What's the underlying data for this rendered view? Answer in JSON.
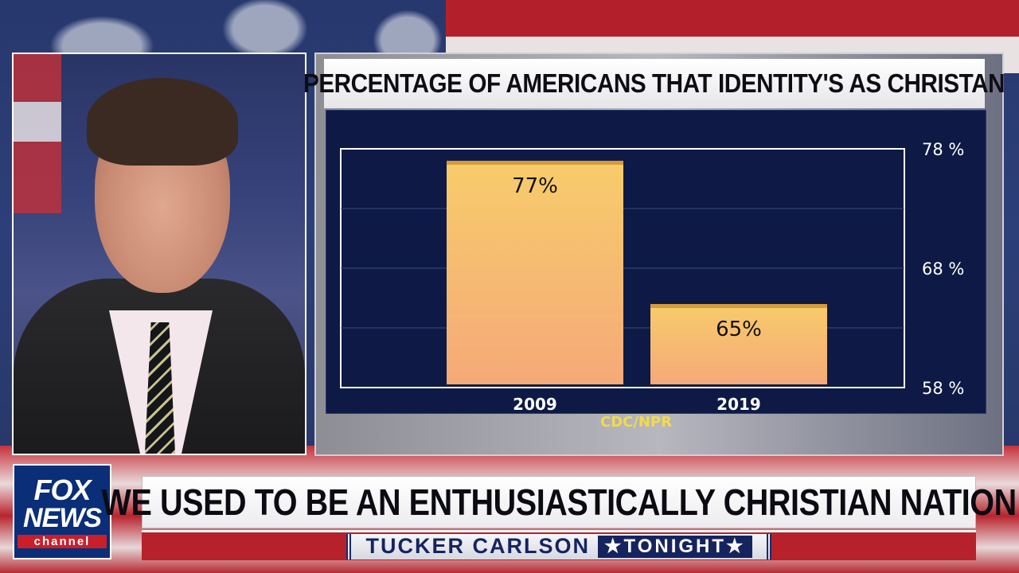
{
  "chart": {
    "title": "PERCENTAGE OF AMERICANS THAT IDENTITY'S AS CHRISTAN",
    "source": "CDC/NPR"
  },
  "chart_data": {
    "type": "bar",
    "title": "PERCENTAGE OF AMERICANS THAT IDENTITY'S AS CHRISTAN",
    "categories": [
      "2009",
      "2019"
    ],
    "values": [
      77,
      65
    ],
    "data_labels": [
      "77%",
      "65%"
    ],
    "yticks": [
      58,
      68,
      78
    ],
    "ytick_labels": [
      "58 %",
      "68 %",
      "78 %"
    ],
    "ylim": [
      58,
      78
    ],
    "y_axis_side": "right",
    "grid": true,
    "bar_color": "#f6c86c",
    "background_color": "#0e1a45"
  },
  "lower_third": {
    "headline": "WE USED TO BE AN ENTHUSIASTICALLY CHRISTIAN NATION",
    "show_name": "TUCKER CARLSON",
    "show_tag": "★TONIGHT★"
  },
  "logo": {
    "line1": "FOX",
    "line2": "NEWS",
    "line3": "channel"
  },
  "colors": {
    "brand_blue": "#0a2e78",
    "brand_red": "#c81f2b",
    "source_yellow": "#f1db4a"
  }
}
